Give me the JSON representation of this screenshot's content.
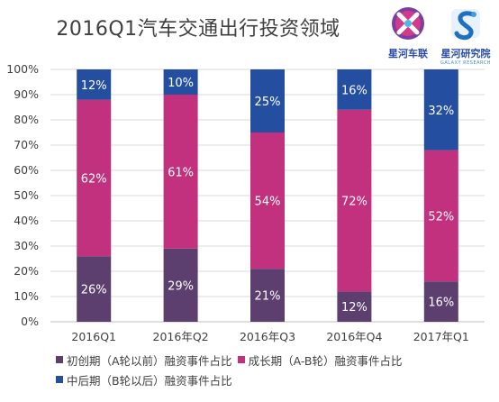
{
  "chart_data": {
    "type": "bar",
    "stacked": true,
    "title": "2016Q1汽车交通出行投资领域",
    "categories": [
      "2016Q1",
      "2016年Q2",
      "2016年Q3",
      "2016年Q4",
      "2017年Q1"
    ],
    "series": [
      {
        "name": "初创期（A轮以前）融资事件占比",
        "color": "#5c3f6e",
        "values": [
          26,
          29,
          21,
          12,
          16
        ]
      },
      {
        "name": "成长期（A-B轮）融资事件占比",
        "color": "#c2317d",
        "values": [
          62,
          61,
          54,
          72,
          52
        ]
      },
      {
        "name": "中后期（B轮以后）融资事件占比",
        "color": "#244ea0",
        "values": [
          12,
          10,
          25,
          16,
          32
        ]
      }
    ],
    "data_labels": [
      [
        "26%",
        "29%",
        "21%",
        "12%",
        "16%"
      ],
      [
        "62%",
        "61%",
        "54%",
        "72%",
        "52%"
      ],
      [
        "12%",
        "10%",
        "25%",
        "16%",
        "32%"
      ]
    ],
    "yticks": [
      "0%",
      "10%",
      "20%",
      "30%",
      "40%",
      "50%",
      "60%",
      "70%",
      "80%",
      "90%",
      "100%"
    ],
    "ylim": [
      0,
      100
    ],
    "grid": true,
    "legend_position": "bottom"
  },
  "logos": {
    "left_label": "星河车联",
    "right_label": "星河研究院",
    "right_sub": "GALAXY RESEARCH",
    "left_color": "#c2317d",
    "right_color": "#244ea0"
  }
}
